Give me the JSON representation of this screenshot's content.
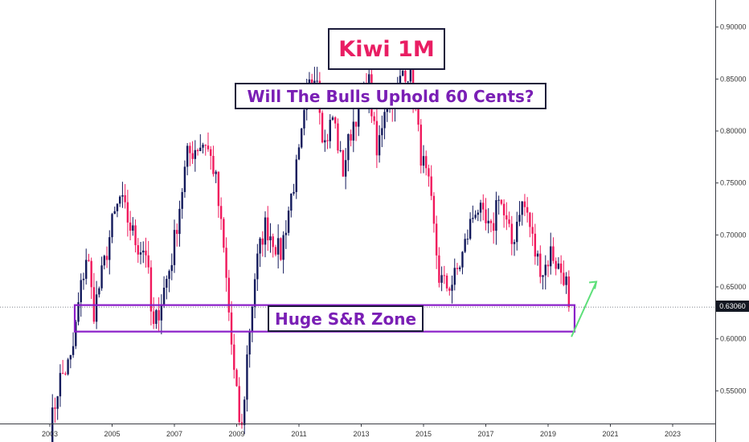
{
  "title": "Kiwi 1M",
  "subtitle": "Will The Bulls Uphold 60 Cents?",
  "zone_label": "Huge S&R Zone",
  "current_price": "0.63060",
  "colors": {
    "up": "#131a5c",
    "down": "#f0185c",
    "zone": "#8a1ec8",
    "arrow": "#5ee07a",
    "text": "#7a1fb5",
    "title": "#e91e63"
  },
  "chart_data": {
    "type": "candlestick",
    "title": "Kiwi 1M",
    "xlabel": "",
    "ylabel": "",
    "x_ticks": [
      "2003",
      "2005",
      "2007",
      "2009",
      "2011",
      "2013",
      "2015",
      "2017",
      "2019",
      "2021",
      "2023"
    ],
    "y_ticks": [
      "0.55000",
      "0.60000",
      "0.65000",
      "0.70000",
      "0.75000",
      "0.80000",
      "0.85000",
      "0.90000",
      "0.95000"
    ],
    "ylim": [
      0.505,
      0.965
    ],
    "xlim": [
      2002.6,
      2024.6
    ],
    "current_price": 0.6306,
    "sr_zone": [
      0.607,
      0.6325
    ],
    "anchors": [
      [
        2003.0,
        0.51
      ],
      [
        2003.3,
        0.56
      ],
      [
        2003.7,
        0.58
      ],
      [
        2003.95,
        0.64
      ],
      [
        2004.2,
        0.685
      ],
      [
        2004.4,
        0.625
      ],
      [
        2004.7,
        0.665
      ],
      [
        2005.0,
        0.71
      ],
      [
        2005.25,
        0.735
      ],
      [
        2005.5,
        0.715
      ],
      [
        2005.8,
        0.69
      ],
      [
        2006.1,
        0.685
      ],
      [
        2006.3,
        0.605
      ],
      [
        2006.6,
        0.64
      ],
      [
        2006.9,
        0.675
      ],
      [
        2007.2,
        0.735
      ],
      [
        2007.4,
        0.775
      ],
      [
        2007.7,
        0.785
      ],
      [
        2008.0,
        0.79
      ],
      [
        2008.3,
        0.76
      ],
      [
        2008.6,
        0.68
      ],
      [
        2008.9,
        0.57
      ],
      [
        2009.15,
        0.505
      ],
      [
        2009.35,
        0.59
      ],
      [
        2009.6,
        0.665
      ],
      [
        2009.9,
        0.71
      ],
      [
        2010.2,
        0.695
      ],
      [
        2010.4,
        0.68
      ],
      [
        2010.7,
        0.73
      ],
      [
        2011.0,
        0.775
      ],
      [
        2011.3,
        0.84
      ],
      [
        2011.55,
        0.865
      ],
      [
        2011.8,
        0.785
      ],
      [
        2012.1,
        0.815
      ],
      [
        2012.4,
        0.76
      ],
      [
        2012.7,
        0.805
      ],
      [
        2013.0,
        0.83
      ],
      [
        2013.25,
        0.845
      ],
      [
        2013.5,
        0.775
      ],
      [
        2013.8,
        0.835
      ],
      [
        2014.1,
        0.83
      ],
      [
        2014.35,
        0.86
      ],
      [
        2014.6,
        0.855
      ],
      [
        2014.9,
        0.78
      ],
      [
        2015.2,
        0.74
      ],
      [
        2015.5,
        0.66
      ],
      [
        2015.7,
        0.65
      ],
      [
        2015.95,
        0.655
      ],
      [
        2016.2,
        0.675
      ],
      [
        2016.5,
        0.71
      ],
      [
        2016.7,
        0.73
      ],
      [
        2016.95,
        0.71
      ],
      [
        2017.2,
        0.7
      ],
      [
        2017.4,
        0.745
      ],
      [
        2017.6,
        0.715
      ],
      [
        2017.85,
        0.69
      ],
      [
        2018.1,
        0.73
      ],
      [
        2018.3,
        0.725
      ],
      [
        2018.6,
        0.68
      ],
      [
        2018.85,
        0.665
      ],
      [
        2019.1,
        0.685
      ],
      [
        2019.3,
        0.67
      ],
      [
        2019.55,
        0.66
      ],
      [
        2019.7,
        0.6306
      ]
    ],
    "annotations": [
      "Kiwi 1M",
      "Will The Bulls Uphold 60 Cents?",
      "Huge S&R Zone"
    ]
  }
}
